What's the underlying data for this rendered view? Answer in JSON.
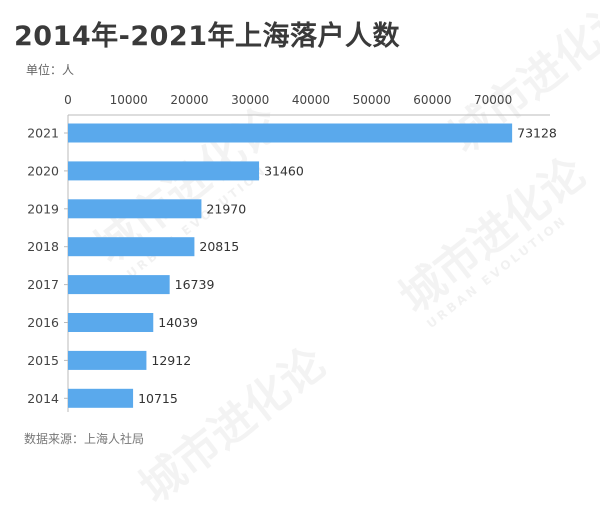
{
  "title": "2014年-2021年上海落户人数",
  "unit_label": "单位：人",
  "source": "数据来源：上海人社局",
  "watermark": {
    "cn": "城市进化论",
    "en": "URBAN EVOLUTION"
  },
  "colors": {
    "bar": "#5aa9ec",
    "axis": "#bbbbbb",
    "text": "#333333"
  },
  "chart_data": {
    "type": "bar",
    "orientation": "horizontal",
    "categories": [
      "2021",
      "2020",
      "2019",
      "2018",
      "2017",
      "2016",
      "2015",
      "2014"
    ],
    "values": [
      73128,
      31460,
      21970,
      20815,
      16739,
      14039,
      12912,
      10715
    ],
    "xlim": [
      0,
      75000
    ],
    "xticks": [
      0,
      10000,
      20000,
      30000,
      40000,
      50000,
      60000,
      70000
    ],
    "axis_position": "top",
    "grid": false,
    "data_labels": true
  }
}
